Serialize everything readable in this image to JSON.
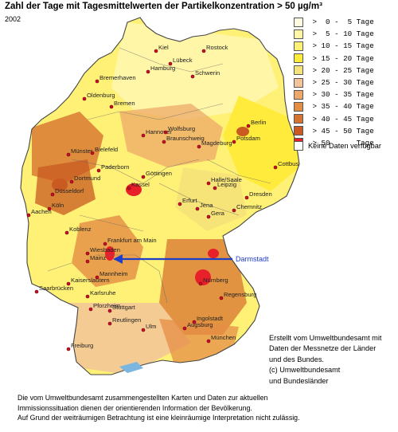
{
  "title": "Zahl der Tage mit Tagesmittelwerten der Partikelkonzentration > 50 µg/m³",
  "year": "2002",
  "legend": {
    "classes": [
      {
        "label": " >  0 -  5 Tage",
        "color": "#fffbe0"
      },
      {
        "label": " >  5 - 10 Tage",
        "color": "#fff6a8"
      },
      {
        "label": " > 10 - 15 Tage",
        "color": "#fff176"
      },
      {
        "label": " > 15 - 20 Tage",
        "color": "#ffeb3b"
      },
      {
        "label": " > 20 - 25 Tage",
        "color": "#f6e27a"
      },
      {
        "label": " > 25 - 30 Tage",
        "color": "#f3c49a"
      },
      {
        "label": " > 30 - 35 Tage",
        "color": "#eea86a"
      },
      {
        "label": " > 35 - 40 Tage",
        "color": "#e48d45"
      },
      {
        "label": " > 40 - 45 Tage",
        "color": "#d77330"
      },
      {
        "label": " > 45 - 50 Tage",
        "color": "#c85a22"
      },
      {
        "label": " > 50      Tage",
        "color": "#e8202a"
      }
    ],
    "no_data": "Keine Daten verfügbar"
  },
  "highlight": {
    "label": "Darmstadt",
    "color": "#1f3fc8"
  },
  "credit": [
    "Erstellt vom Umweltbundesamt mit",
    "Daten der Messnetze der Länder",
    "und des Bundes.",
    "(c) Umweltbundesamt",
    "und Bundesländer"
  ],
  "disclaimer": [
    "Die vom Umweltbundesamt zusammengestellten Karten und Daten zur aktuellen",
    "Immissionssituation dienen der orientierenden Information der Bevölkerung.",
    "Auf Grund der weiträumigen Betrachtung ist eine kleinräumige Interpretation nicht zulässig."
  ],
  "cities": [
    {
      "name": "Kiel"
    },
    {
      "name": "Rostock"
    },
    {
      "name": "Lübeck"
    },
    {
      "name": "Schwerin"
    },
    {
      "name": "Hamburg"
    },
    {
      "name": "Bremerhaven"
    },
    {
      "name": "Oldenburg"
    },
    {
      "name": "Bremen"
    },
    {
      "name": "Berlin"
    },
    {
      "name": "Potsdam"
    },
    {
      "name": "Hannover"
    },
    {
      "name": "Wolfsburg"
    },
    {
      "name": "Braunschweig"
    },
    {
      "name": "Magdeburg"
    },
    {
      "name": "Münster"
    },
    {
      "name": "Bielefeld"
    },
    {
      "name": "Paderborn"
    },
    {
      "name": "Cottbus"
    },
    {
      "name": "Dortmund"
    },
    {
      "name": "Düsseldorf"
    },
    {
      "name": "Köln"
    },
    {
      "name": "Aachen"
    },
    {
      "name": "Göttingen"
    },
    {
      "name": "Kassel"
    },
    {
      "name": "Halle/Saale"
    },
    {
      "name": "Leipzig"
    },
    {
      "name": "Dresden"
    },
    {
      "name": "Erfurt"
    },
    {
      "name": "Jena"
    },
    {
      "name": "Gera"
    },
    {
      "name": "Chemnitz"
    },
    {
      "name": "Koblenz"
    },
    {
      "name": "Frankfurt am Main"
    },
    {
      "name": "Wiesbaden"
    },
    {
      "name": "Mainz"
    },
    {
      "name": "Mannheim"
    },
    {
      "name": "Kaiserslautern"
    },
    {
      "name": "Saarbrücken"
    },
    {
      "name": "Karlsruhe"
    },
    {
      "name": "Pforzheim"
    },
    {
      "name": "Nürnberg"
    },
    {
      "name": "Regensburg"
    },
    {
      "name": "Stuttgart"
    },
    {
      "name": "Reutlingen"
    },
    {
      "name": "Ingolstadt"
    },
    {
      "name": "Ulm"
    },
    {
      "name": "Augsburg"
    },
    {
      "name": "München"
    },
    {
      "name": "Freiburg"
    }
  ]
}
